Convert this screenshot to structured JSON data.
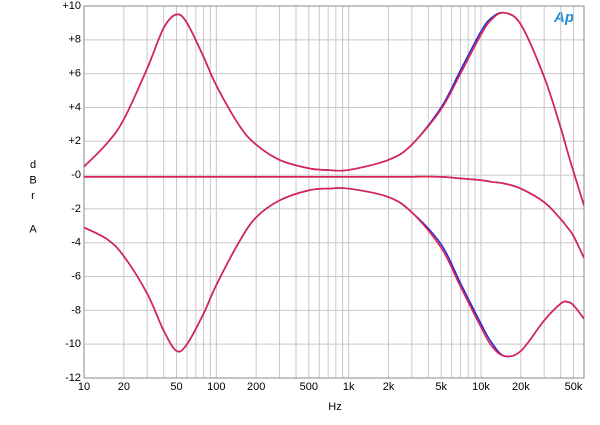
{
  "chart_data": {
    "type": "line",
    "logo": "Ap",
    "xlabel": "Hz",
    "ylabel": "dBr A",
    "xscale": "log",
    "grid": true,
    "xlim": [
      10,
      60000
    ],
    "ylim": [
      -12,
      10
    ],
    "xticks": [
      10,
      20,
      50,
      100,
      200,
      500,
      {
        "value": 1000,
        "label": "1k"
      },
      {
        "value": 2000,
        "label": "2k"
      },
      {
        "value": 5000,
        "label": "5k"
      },
      {
        "value": 10000,
        "label": "10k"
      },
      {
        "value": 20000,
        "label": "20k"
      },
      {
        "value": 50000,
        "label": "50k"
      }
    ],
    "x_minor_grid": [
      30,
      40,
      60,
      70,
      80,
      90,
      300,
      400,
      600,
      700,
      800,
      900,
      3000,
      4000,
      6000,
      7000,
      8000,
      9000,
      30000,
      40000
    ],
    "yticks": [
      {
        "value": 10,
        "label": "+10"
      },
      {
        "value": 8,
        "label": "+8"
      },
      {
        "value": 6,
        "label": "+6"
      },
      {
        "value": 4,
        "label": "+4"
      },
      {
        "value": 2,
        "label": "+2"
      },
      {
        "value": 0,
        "label": "-0"
      },
      -2,
      -4,
      -6,
      -8,
      -10,
      -12
    ],
    "x": [
      10,
      15,
      20,
      30,
      40,
      50,
      60,
      80,
      100,
      150,
      200,
      300,
      500,
      700,
      1000,
      2000,
      3000,
      5000,
      7000,
      10000,
      12000,
      15000,
      20000,
      30000,
      40000,
      45000,
      50000,
      60000
    ],
    "series": [
      {
        "color": "#2a2ad8",
        "values": [
          0.5,
          1.9,
          3.3,
          6.3,
          8.7,
          9.5,
          9.0,
          7.0,
          5.3,
          2.9,
          1.8,
          0.9,
          0.4,
          0.3,
          0.3,
          0.9,
          1.8,
          4.0,
          6.2,
          8.5,
          9.3,
          9.6,
          8.9,
          5.8,
          2.8,
          1.4,
          0.2,
          -1.8
        ]
      },
      {
        "color": "#2a2ad8",
        "values": [
          -0.1,
          -0.1,
          -0.1,
          -0.1,
          -0.1,
          -0.1,
          -0.1,
          -0.1,
          -0.1,
          -0.1,
          -0.1,
          -0.1,
          -0.1,
          -0.1,
          -0.1,
          -0.1,
          -0.1,
          -0.1,
          -0.2,
          -0.3,
          -0.4,
          -0.5,
          -0.8,
          -1.6,
          -2.6,
          -3.1,
          -3.6,
          -4.9
        ]
      },
      {
        "color": "#2a2ad8",
        "values": [
          -3.1,
          -3.8,
          -4.8,
          -7.0,
          -9.2,
          -10.4,
          -10.0,
          -8.2,
          -6.5,
          -3.9,
          -2.5,
          -1.5,
          -0.9,
          -0.8,
          -0.8,
          -1.3,
          -2.2,
          -4.1,
          -6.4,
          -8.8,
          -9.9,
          -10.7,
          -10.4,
          -8.6,
          -7.6,
          -7.5,
          -7.7,
          -8.5
        ]
      },
      {
        "color": "#e0224e",
        "values": [
          0.5,
          1.9,
          3.3,
          6.3,
          8.7,
          9.5,
          9.0,
          7.0,
          5.3,
          2.9,
          1.8,
          0.9,
          0.4,
          0.3,
          0.3,
          0.9,
          1.8,
          3.9,
          6.0,
          8.3,
          9.2,
          9.6,
          8.9,
          5.8,
          2.8,
          1.4,
          0.2,
          -1.8
        ]
      },
      {
        "color": "#e0224e",
        "values": [
          -0.1,
          -0.1,
          -0.1,
          -0.1,
          -0.1,
          -0.1,
          -0.1,
          -0.1,
          -0.1,
          -0.1,
          -0.1,
          -0.1,
          -0.1,
          -0.1,
          -0.1,
          -0.1,
          -0.1,
          -0.1,
          -0.2,
          -0.3,
          -0.4,
          -0.5,
          -0.8,
          -1.6,
          -2.6,
          -3.1,
          -3.6,
          -4.9
        ]
      },
      {
        "color": "#e0224e",
        "values": [
          -3.1,
          -3.8,
          -4.8,
          -7.0,
          -9.2,
          -10.4,
          -10.0,
          -8.2,
          -6.5,
          -3.9,
          -2.5,
          -1.5,
          -0.9,
          -0.8,
          -0.8,
          -1.3,
          -2.2,
          -4.3,
          -6.6,
          -9.0,
          -10.1,
          -10.7,
          -10.4,
          -8.6,
          -7.6,
          -7.5,
          -7.7,
          -8.5
        ]
      }
    ]
  }
}
